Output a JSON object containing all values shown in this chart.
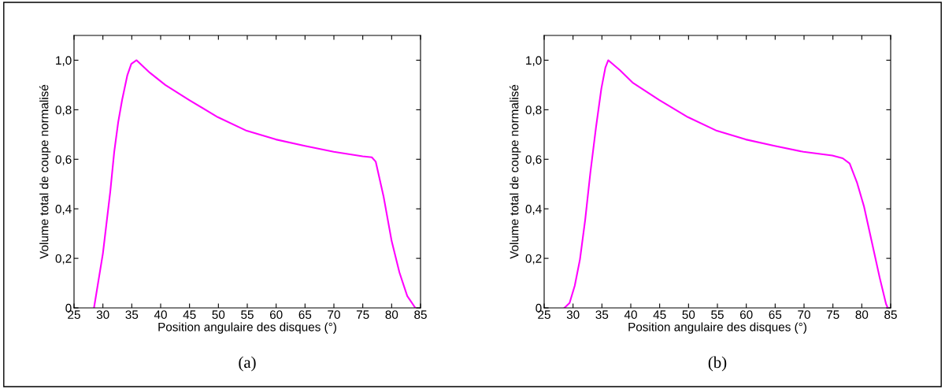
{
  "chart_data": [
    {
      "type": "line",
      "xlabel": "Position angulaire des disques (°)",
      "ylabel": "Volume total de coupe normalisé",
      "annotations": [
        "(a)"
      ],
      "xlim": [
        25,
        85
      ],
      "xticks": [
        25,
        30,
        35,
        40,
        45,
        50,
        55,
        60,
        65,
        70,
        75,
        80,
        85
      ],
      "ylim": [
        0,
        1.1
      ],
      "yticks": [
        {
          "value": 0,
          "label": "0"
        },
        {
          "value": 0.2,
          "label": "0,2"
        },
        {
          "value": 0.4,
          "label": "0,4"
        },
        {
          "value": 0.6,
          "label": "0,6"
        },
        {
          "value": 0.8,
          "label": "0,8"
        },
        {
          "value": 1.0,
          "label": "1,0"
        }
      ],
      "grid": false,
      "legend": false,
      "series": [
        {
          "color": "#ff00ff",
          "x": [
            28.46,
            30.0,
            31.28,
            31.96,
            32.65,
            33.33,
            34.24,
            34.92,
            35.83,
            38.1,
            40.8,
            44.9,
            49.9,
            54.9,
            59.95,
            64.96,
            69.97,
            74.98,
            76.57,
            77.25,
            78.6,
            80.0,
            81.35,
            82.7,
            84.1
          ],
          "values": [
            0,
            0.22,
            0.47,
            0.63,
            0.75,
            0.84,
            0.94,
            0.985,
            1.0,
            0.95,
            0.9,
            0.84,
            0.77,
            0.715,
            0.68,
            0.654,
            0.63,
            0.612,
            0.608,
            0.59,
            0.45,
            0.27,
            0.143,
            0.048,
            0
          ]
        }
      ]
    },
    {
      "type": "line",
      "xlabel": "Position angulaire des disques (°)",
      "ylabel": "Volume total de coupe normalisé",
      "annotations": [
        "(b)"
      ],
      "xlim": [
        25,
        85
      ],
      "xticks": [
        25,
        30,
        35,
        40,
        45,
        50,
        55,
        60,
        65,
        70,
        75,
        80,
        85
      ],
      "ylim": [
        0,
        1.1
      ],
      "yticks": [
        {
          "value": 0,
          "label": "0"
        },
        {
          "value": 0.2,
          "label": "0,2"
        },
        {
          "value": 0.4,
          "label": "0,4"
        },
        {
          "value": 0.6,
          "label": "0,6"
        },
        {
          "value": 0.8,
          "label": "0,8"
        },
        {
          "value": 1.0,
          "label": "1,0"
        }
      ],
      "grid": false,
      "legend": false,
      "series": [
        {
          "color": "#ff00ff",
          "x": [
            28.5,
            29.4,
            30.3,
            31.2,
            32.1,
            33.0,
            33.96,
            34.9,
            35.6,
            36.1,
            38.1,
            40.3,
            44.9,
            49.9,
            54.9,
            59.9,
            64.9,
            69.9,
            74.9,
            76.7,
            77.9,
            79.2,
            80.4,
            81.7,
            83.1,
            84.2,
            84.5
          ],
          "values": [
            0,
            0.02,
            0.09,
            0.196,
            0.355,
            0.546,
            0.726,
            0.885,
            0.97,
            1.0,
            0.96,
            0.91,
            0.84,
            0.77,
            0.715,
            0.68,
            0.654,
            0.63,
            0.615,
            0.604,
            0.583,
            0.504,
            0.408,
            0.27,
            0.122,
            0.016,
            0
          ]
        }
      ]
    }
  ]
}
